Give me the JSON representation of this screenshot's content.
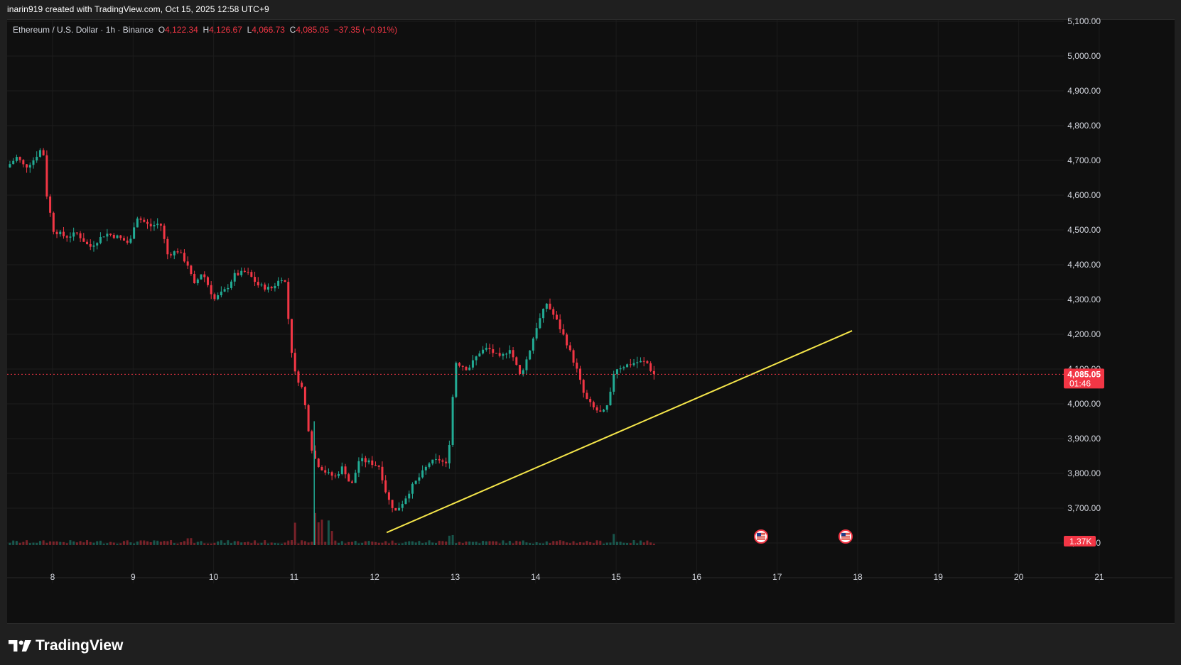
{
  "header": {
    "attribution": "inarin919 created with TradingView.com, Oct 15, 2025 12:58 UTC+9"
  },
  "legend": {
    "symbol": "Ethereum / U.S. Dollar · 1h · Binance",
    "open_label": "O",
    "open": "4,122.34",
    "high_label": "H",
    "high": "4,126.67",
    "low_label": "L",
    "low": "4,066.73",
    "close_label": "C",
    "close": "4,085.05",
    "change": "−37.35 (−0.91%)"
  },
  "price_tag": {
    "price": "4,085.05",
    "countdown": "01:46"
  },
  "volume_tag": "1.37K",
  "footer": {
    "logo_text": "TradingView"
  },
  "colors": {
    "up": "#22ab94",
    "down": "#f23645",
    "trendline": "#f5e64a",
    "background": "#0f0f0f",
    "grid": "#1c1c1c"
  },
  "chart_data": {
    "type": "candlestick",
    "symbol": "ETHUSD",
    "interval": "1h",
    "x_ticks": [
      "8",
      "9",
      "10",
      "11",
      "12",
      "13",
      "14",
      "15",
      "16",
      "17",
      "18",
      "19",
      "20",
      "21"
    ],
    "y_ticks": [
      "3,600.00",
      "3,700.00",
      "3,800.00",
      "3,900.00",
      "4,000.00",
      "4,100.00",
      "4,200.00",
      "4,300.00",
      "4,400.00",
      "4,500.00",
      "4,600.00",
      "4,700.00",
      "4,800.00",
      "4,900.00",
      "5,000.00",
      "5,100.00"
    ],
    "y_range": [
      3580,
      5110
    ],
    "x_range_days": [
      7.42,
      21.35
    ],
    "last_price": 4085.05,
    "trendline": {
      "start": {
        "day": 12.15,
        "price": 3630
      },
      "end": {
        "day": 17.93,
        "price": 4210
      }
    },
    "event_markers_day": [
      16.8,
      17.85
    ],
    "price_path": [
      [
        7.47,
        4680
      ],
      [
        7.6,
        4710
      ],
      [
        7.7,
        4680
      ],
      [
        7.8,
        4700
      ],
      [
        7.92,
        4740
      ],
      [
        7.97,
        4600
      ],
      [
        8.05,
        4500
      ],
      [
        8.2,
        4480
      ],
      [
        8.35,
        4490
      ],
      [
        8.5,
        4450
      ],
      [
        8.7,
        4490
      ],
      [
        8.85,
        4480
      ],
      [
        9.0,
        4460
      ],
      [
        9.08,
        4540
      ],
      [
        9.25,
        4510
      ],
      [
        9.38,
        4520
      ],
      [
        9.47,
        4430
      ],
      [
        9.6,
        4440
      ],
      [
        9.72,
        4400
      ],
      [
        9.8,
        4340
      ],
      [
        9.9,
        4380
      ],
      [
        10.05,
        4300
      ],
      [
        10.2,
        4330
      ],
      [
        10.3,
        4370
      ],
      [
        10.45,
        4380
      ],
      [
        10.6,
        4340
      ],
      [
        10.75,
        4330
      ],
      [
        10.92,
        4370
      ],
      [
        11.0,
        4170
      ],
      [
        11.05,
        4090
      ],
      [
        11.15,
        4040
      ],
      [
        11.25,
        3880
      ],
      [
        11.32,
        3830
      ],
      [
        11.45,
        3800
      ],
      [
        11.55,
        3790
      ],
      [
        11.65,
        3820
      ],
      [
        11.75,
        3760
      ],
      [
        11.85,
        3840
      ],
      [
        12.0,
        3830
      ],
      [
        12.1,
        3820
      ],
      [
        12.2,
        3730
      ],
      [
        12.3,
        3690
      ],
      [
        12.4,
        3720
      ],
      [
        12.5,
        3760
      ],
      [
        12.6,
        3790
      ],
      [
        12.72,
        3830
      ],
      [
        12.85,
        3840
      ],
      [
        12.95,
        3820
      ],
      [
        13.0,
        3990
      ],
      [
        13.05,
        4120
      ],
      [
        13.2,
        4100
      ],
      [
        13.35,
        4150
      ],
      [
        13.45,
        4160
      ],
      [
        13.6,
        4130
      ],
      [
        13.72,
        4160
      ],
      [
        13.85,
        4080
      ],
      [
        13.95,
        4140
      ],
      [
        14.05,
        4220
      ],
      [
        14.18,
        4290
      ],
      [
        14.3,
        4240
      ],
      [
        14.42,
        4180
      ],
      [
        14.55,
        4100
      ],
      [
        14.65,
        4020
      ],
      [
        14.75,
        3990
      ],
      [
        14.87,
        3970
      ],
      [
        14.95,
        4000
      ],
      [
        15.02,
        4100
      ],
      [
        15.15,
        4110
      ],
      [
        15.3,
        4120
      ],
      [
        15.42,
        4120
      ],
      [
        15.5,
        4085
      ]
    ],
    "volume_spikes": [
      [
        11.0,
        3.0
      ],
      [
        11.25,
        7.5
      ],
      [
        11.32,
        5.5
      ],
      [
        11.45,
        3.8
      ],
      [
        12.95,
        3.2
      ],
      [
        14.98,
        2.2
      ],
      [
        9.7,
        1.5
      ],
      [
        8.0,
        1.3
      ]
    ]
  }
}
